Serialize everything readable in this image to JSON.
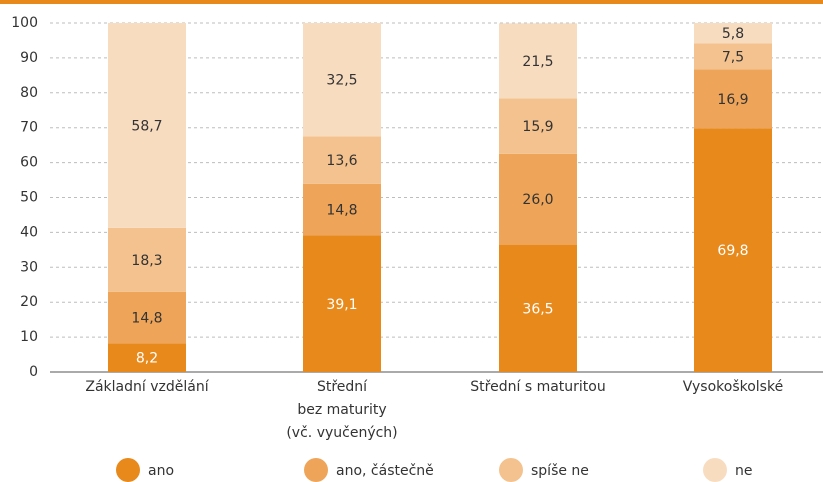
{
  "chart_data": {
    "type": "stacked_bar",
    "categories": [
      "Základní vzdělání",
      "Střední\nbez maturity\n(vč. vyučených)",
      "Střední s maturitou",
      "Vysokoškolské"
    ],
    "series": [
      {
        "name": "ano",
        "color": "#e8891c",
        "values": [
          8.2,
          39.1,
          36.5,
          69.8
        ],
        "value_labels": [
          "8,2",
          "39,1",
          "36,5",
          "69,8"
        ]
      },
      {
        "name": "ano, částečně",
        "color": "#eea55a",
        "values": [
          14.8,
          14.8,
          26.0,
          16.9
        ],
        "value_labels": [
          "14,8",
          "14,8",
          "26,0",
          "16,9"
        ]
      },
      {
        "name": "spíše ne",
        "color": "#f4c28e",
        "values": [
          18.3,
          13.6,
          15.9,
          7.5
        ],
        "value_labels": [
          "18,3",
          "13,6",
          "15,9",
          "7,5"
        ]
      },
      {
        "name": "ne",
        "color": "#f8dcc0",
        "values": [
          58.7,
          32.5,
          21.5,
          5.8
        ],
        "value_labels": [
          "58,7",
          "32,5",
          "21,5",
          "5,8"
        ]
      }
    ],
    "ylim": [
      0,
      100
    ],
    "yticks": [
      0,
      10,
      20,
      30,
      40,
      50,
      60,
      70,
      80,
      90,
      100
    ],
    "grid": true,
    "legend": "bottom"
  }
}
